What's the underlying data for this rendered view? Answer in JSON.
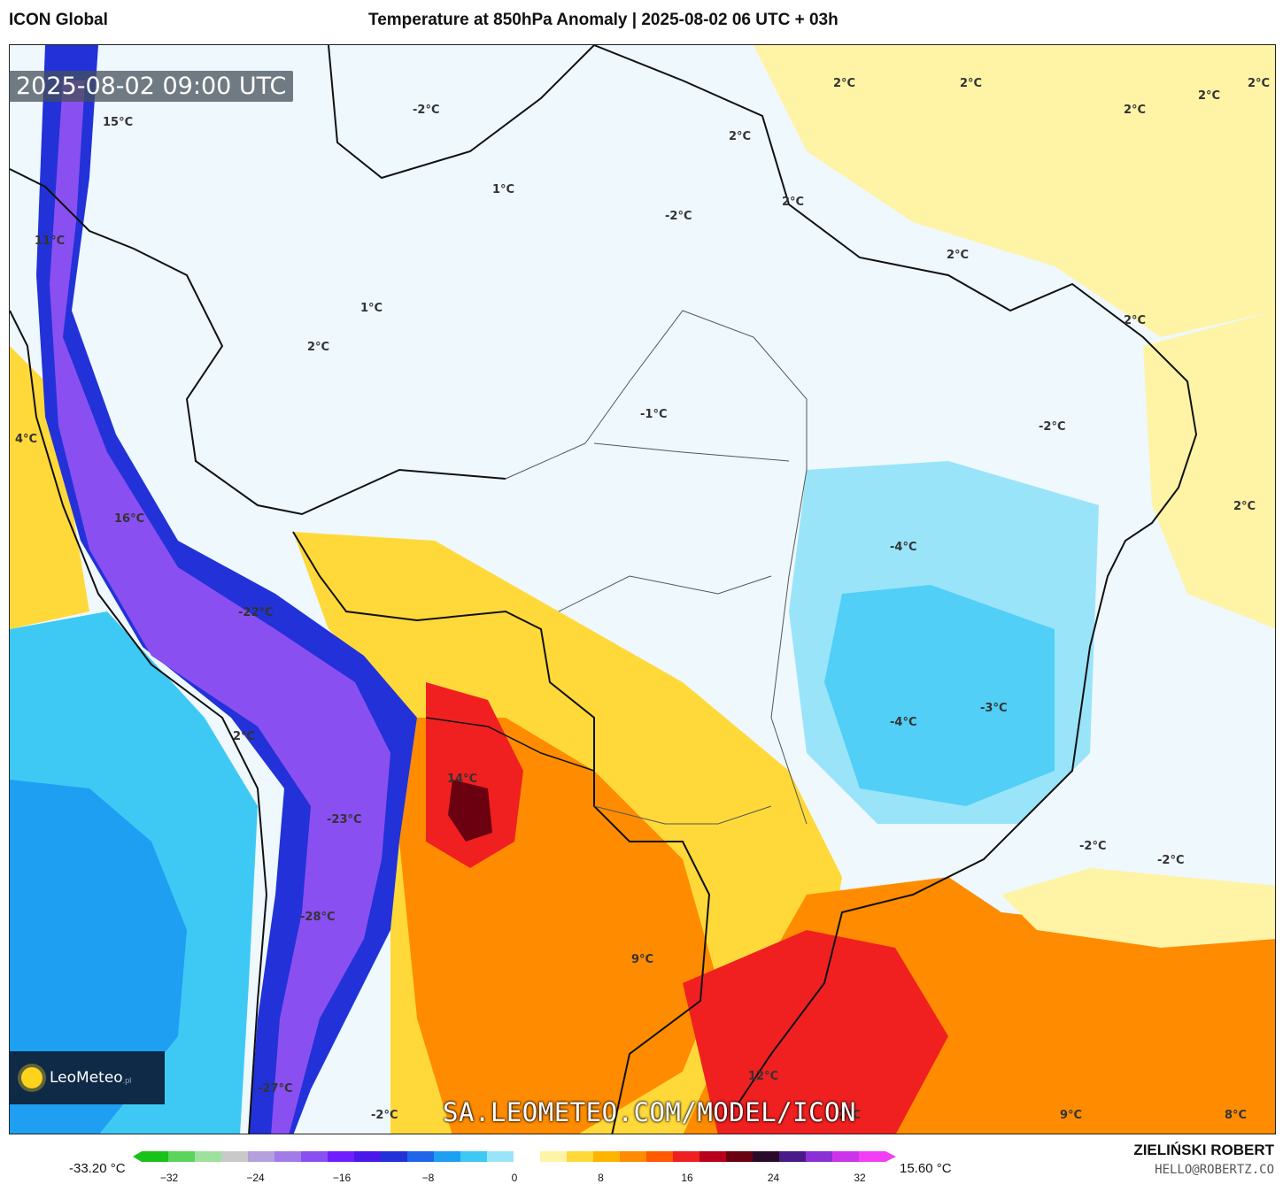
{
  "header": {
    "model_name": "ICON Global",
    "map_title": "Temperature at 850hPa Anomaly | 2025-08-02 06 UTC + 03h"
  },
  "timestamp": "2025-08-02 09:00 UTC",
  "logo": {
    "text": "LeoMeteo",
    "suffix": ".pl"
  },
  "watermark": "SA.LEOMETEO.COM/MODEL/ICON",
  "map_labels": [
    "15°C",
    "-2°C",
    "2°C",
    "2°C",
    "2°C",
    "2°C",
    "2°C",
    "2°C",
    "1°C",
    "-2°C",
    "2°C",
    "11°C",
    "2°C",
    "1°C",
    "2°C",
    "2°C",
    "-1°C",
    "-2°C",
    "4°C",
    "2°C",
    "16°C",
    "-4°C",
    "-22°C",
    "-3°C",
    "-4°C",
    "2°C",
    "14°C",
    "-23°C",
    "-2°C",
    "-2°C",
    "-28°C",
    "9°C",
    "12°C",
    "-27°C",
    "-2°C",
    "2°C",
    "9°C",
    "8°C"
  ],
  "colorbar": {
    "min_label": "-33.20 °C",
    "max_label": "15.60 °C",
    "ticks": [
      "−32",
      "−24",
      "−16",
      "−8",
      "0",
      "8",
      "16",
      "24",
      "32"
    ],
    "colors": [
      "#19c219",
      "#5ad45a",
      "#9ee19e",
      "#c9c9c9",
      "#b3a0dd",
      "#a37be8",
      "#8a4ff0",
      "#6f1fff",
      "#4a18ea",
      "#2232d8",
      "#1f66e8",
      "#1e9ff2",
      "#3ec9f5",
      "#9ae4fa",
      "#ffffff",
      "#fff3a6",
      "#ffd93a",
      "#ffb500",
      "#ff8c00",
      "#ff5a00",
      "#f02020",
      "#b8001c",
      "#6a0010",
      "#2a0a2a",
      "#4a1a8a",
      "#8b2fd6",
      "#cc34ec",
      "#f23ff5"
    ]
  },
  "author": {
    "name": "ZIELIŃSKI ROBERT",
    "email": "HELLO@ROBERTZ.CO"
  }
}
